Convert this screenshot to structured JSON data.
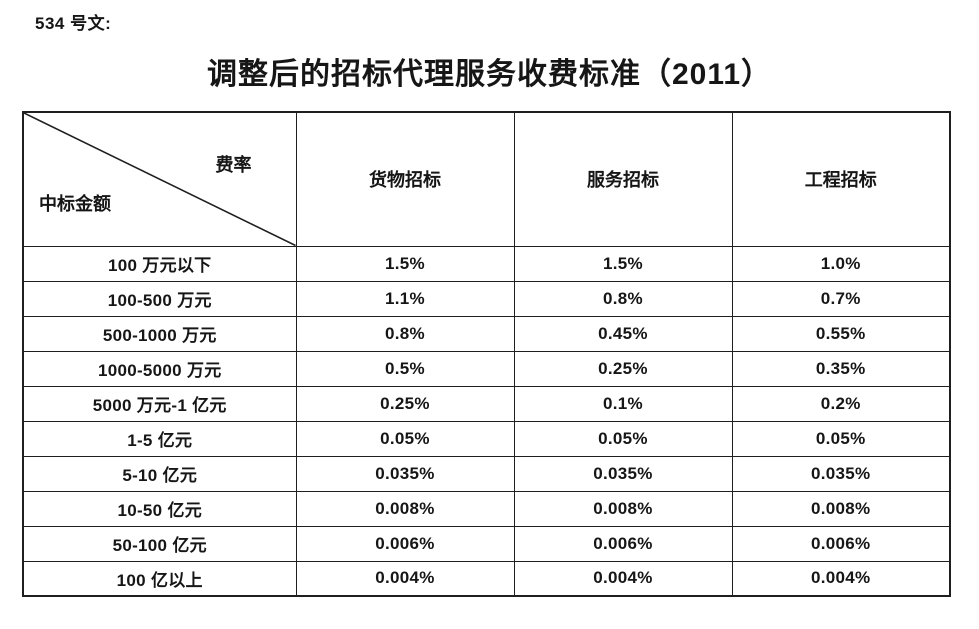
{
  "page": {
    "doc_label": "534 号文:",
    "title": "调整后的招标代理服务收费标准（2011）"
  },
  "table": {
    "corner": {
      "top_right": "费率",
      "bottom_left": "中标金额"
    },
    "columns": [
      "货物招标",
      "服务招标",
      "工程招标"
    ],
    "rows": [
      {
        "amount": "100 万元以下",
        "values": [
          "1.5%",
          "1.5%",
          "1.0%"
        ]
      },
      {
        "amount": "100-500 万元",
        "values": [
          "1.1%",
          "0.8%",
          "0.7%"
        ]
      },
      {
        "amount": "500-1000 万元",
        "values": [
          "0.8%",
          "0.45%",
          "0.55%"
        ]
      },
      {
        "amount": "1000-5000 万元",
        "values": [
          "0.5%",
          "0.25%",
          "0.35%"
        ]
      },
      {
        "amount": "5000 万元-1 亿元",
        "values": [
          "0.25%",
          "0.1%",
          "0.2%"
        ]
      },
      {
        "amount": "1-5 亿元",
        "values": [
          "0.05%",
          "0.05%",
          "0.05%"
        ]
      },
      {
        "amount": "5-10 亿元",
        "values": [
          "0.035%",
          "0.035%",
          "0.035%"
        ]
      },
      {
        "amount": "10-50 亿元",
        "values": [
          "0.008%",
          "0.008%",
          "0.008%"
        ]
      },
      {
        "amount": "50-100 亿元",
        "values": [
          "0.006%",
          "0.006%",
          "0.006%"
        ]
      },
      {
        "amount": "100 亿以上",
        "values": [
          "0.004%",
          "0.004%",
          "0.004%"
        ]
      }
    ],
    "border_color": "#1f1f1f"
  }
}
